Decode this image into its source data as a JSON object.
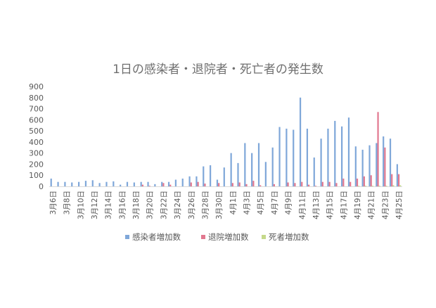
{
  "chart_data": {
    "type": "bar",
    "title": "1日の感染者・退院者・死亡者の発生数",
    "xlabel": "",
    "ylabel": "",
    "ylim": [
      0,
      900
    ],
    "yticks": [
      0,
      100,
      200,
      300,
      400,
      500,
      600,
      700,
      800,
      900
    ],
    "grid": false,
    "legend_position": "bottom",
    "categories": [
      "3月6日",
      "3月7日",
      "3月8日",
      "3月9日",
      "3月10日",
      "3月11日",
      "3月12日",
      "3月13日",
      "3月14日",
      "3月15日",
      "3月16日",
      "3月17日",
      "3月18日",
      "3月19日",
      "3月20日",
      "3月21日",
      "3月22日",
      "3月23日",
      "3月24日",
      "3月25日",
      "3月26日",
      "3月27日",
      "3月28日",
      "3月29日",
      "3月30日",
      "3月31日",
      "4月1日",
      "4月2日",
      "4月3日",
      "4月4日",
      "4月5日",
      "4月6日",
      "4月7日",
      "4月8日",
      "4月9日",
      "4月10日",
      "4月11日",
      "4月12日",
      "4月13日",
      "4月14日",
      "4月15日",
      "4月16日",
      "4月17日",
      "4月18日",
      "4月19日",
      "4月20日",
      "4月21日",
      "4月22日",
      "4月23日",
      "4月24日",
      "4月25日"
    ],
    "tick_labels": [
      "3月6日",
      "3月8日",
      "3月10日",
      "3月12日",
      "3月14日",
      "3月16日",
      "3月18日",
      "3月20日",
      "3月22日",
      "3月24日",
      "3月26日",
      "3月28日",
      "3月30日",
      "4月1日",
      "4月3日",
      "4月5日",
      "4月7日",
      "4月9日",
      "4月11日",
      "4月13日",
      "4月15日",
      "4月17日",
      "4月19日",
      "4月21日",
      "4月23日",
      "4月25日"
    ],
    "series": [
      {
        "name": "感染者増加数",
        "color": "#7fa7d9",
        "values": [
          70,
          40,
          40,
          35,
          40,
          50,
          55,
          30,
          40,
          45,
          15,
          40,
          35,
          40,
          40,
          20,
          40,
          40,
          60,
          70,
          90,
          90,
          180,
          190,
          60,
          170,
          300,
          210,
          390,
          300,
          390,
          220,
          350,
          535,
          520,
          510,
          800,
          520,
          260,
          430,
          520,
          590,
          540,
          620,
          360,
          330,
          370,
          390,
          450,
          430,
          200
        ]
      },
      {
        "name": "退院増加数",
        "color": "#e2788f",
        "values": [
          0,
          0,
          0,
          0,
          0,
          0,
          0,
          0,
          0,
          0,
          0,
          0,
          0,
          15,
          5,
          0,
          30,
          15,
          0,
          0,
          35,
          40,
          25,
          0,
          30,
          0,
          30,
          35,
          20,
          50,
          10,
          0,
          20,
          0,
          35,
          30,
          40,
          15,
          5,
          40,
          40,
          30,
          70,
          40,
          70,
          90,
          100,
          670,
          350,
          110,
          110
        ]
      },
      {
        "name": "死者増加数",
        "color": "#c5d98a",
        "values": [
          0,
          0,
          0,
          0,
          0,
          0,
          0,
          0,
          0,
          0,
          0,
          0,
          0,
          0,
          0,
          0,
          0,
          0,
          0,
          0,
          0,
          0,
          0,
          0,
          0,
          0,
          0,
          0,
          0,
          0,
          0,
          0,
          0,
          0,
          0,
          0,
          0,
          0,
          0,
          0,
          0,
          0,
          0,
          0,
          5,
          5,
          5,
          5,
          5,
          10,
          10
        ]
      }
    ]
  }
}
